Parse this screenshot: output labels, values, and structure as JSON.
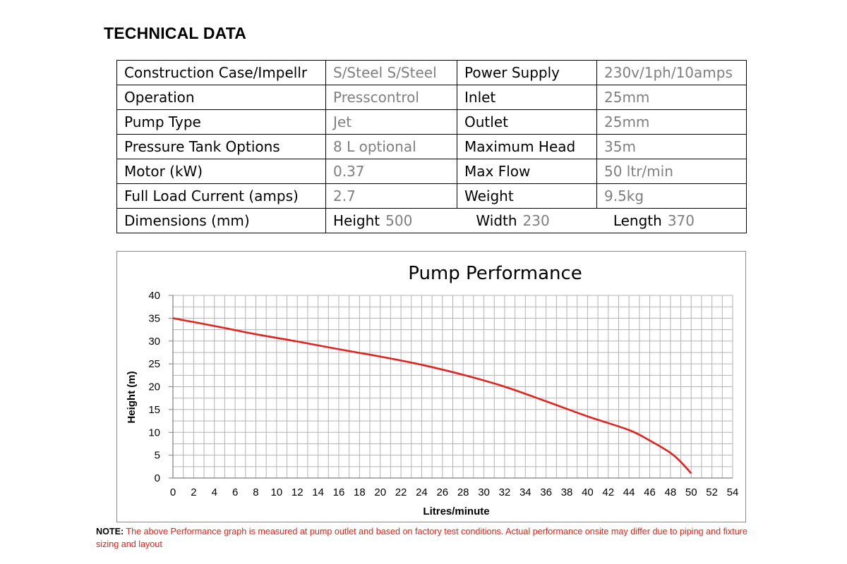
{
  "heading": "TECHNICAL DATA",
  "table": {
    "rows": [
      {
        "label1": "Construction Case/Impellr",
        "value1": "S/Steel S/Steel",
        "label2": "Power Supply",
        "value2": "230v/1ph/10amps"
      },
      {
        "label1": "Operation",
        "value1": "Presscontrol",
        "label2": "Inlet",
        "value2": "25mm"
      },
      {
        "label1": "Pump Type",
        "value1": "Jet",
        "label2": "Outlet",
        "value2": "25mm"
      },
      {
        "label1": "Pressure Tank Options",
        "value1": "8 L optional",
        "label2": "Maximum Head",
        "value2": "35m"
      },
      {
        "label1": "Motor  (kW)",
        "value1": "0.37",
        "label2": "Max Flow",
        "value2": "50 ltr/min"
      },
      {
        "label1": "Full Load Current (amps)",
        "value1": "2.7",
        "label2": "Weight",
        "value2": "9.5kg"
      }
    ],
    "dimensions": {
      "label": "Dimensions (mm)",
      "height_label": "Height",
      "height_value": "500",
      "width_label": "Width",
      "width_value": "230",
      "length_label": "Length",
      "length_value": "370"
    }
  },
  "chart_data": {
    "type": "line",
    "title": "Pump Performance",
    "xlabel": "Litres/minute",
    "ylabel": "Height (m)",
    "xlim": [
      0,
      54
    ],
    "ylim": [
      0,
      40
    ],
    "x_ticks": [
      0,
      2,
      4,
      6,
      8,
      10,
      12,
      14,
      16,
      18,
      20,
      22,
      24,
      26,
      28,
      30,
      32,
      34,
      36,
      38,
      40,
      42,
      44,
      46,
      48,
      50,
      52,
      54
    ],
    "y_ticks": [
      0,
      5,
      10,
      15,
      20,
      25,
      30,
      35,
      40
    ],
    "grid": true,
    "series": [
      {
        "color": "#e0231f",
        "x": [
          0,
          4,
          8,
          12,
          16,
          20,
          24,
          28,
          32,
          36,
          40,
          44,
          46,
          48,
          49,
          50
        ],
        "y": [
          35,
          33.3,
          31.5,
          29.9,
          28.2,
          26.6,
          24.8,
          22.6,
          20,
          16.8,
          13.5,
          10.5,
          8.2,
          5.5,
          3.5,
          1
        ]
      }
    ]
  },
  "note": {
    "label": "NOTE:",
    "text": " The above Performance graph is measured at pump outlet and based on factory test conditions. Actual performance onsite may differ due to piping and fixture sizing and layout"
  }
}
